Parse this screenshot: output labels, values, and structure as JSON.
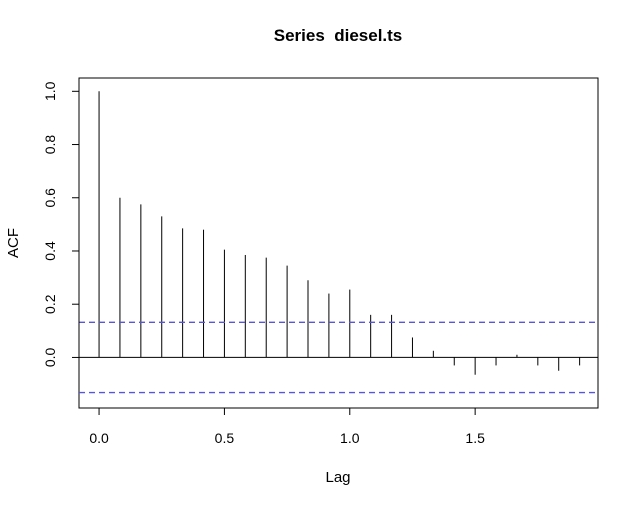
{
  "chart_data": {
    "type": "bar",
    "title": "Series  diesel.ts",
    "xlabel": "Lag",
    "ylabel": "ACF",
    "xlim": [
      -0.08,
      1.99
    ],
    "ylim": [
      -0.19,
      1.05
    ],
    "x_ticks": [
      "0.0",
      "0.5",
      "1.0",
      "1.5"
    ],
    "y_ticks": [
      "0.0",
      "0.2",
      "0.4",
      "0.6",
      "0.8",
      "1.0"
    ],
    "grid": false,
    "x": [
      0.0,
      0.0833,
      0.1667,
      0.25,
      0.3333,
      0.4167,
      0.5,
      0.5833,
      0.6667,
      0.75,
      0.8333,
      0.9167,
      1.0,
      1.0833,
      1.1667,
      1.25,
      1.3333,
      1.4167,
      1.5,
      1.5833,
      1.6667,
      1.75,
      1.8333,
      1.9167
    ],
    "values": [
      1.0,
      0.6,
      0.575,
      0.53,
      0.485,
      0.48,
      0.405,
      0.385,
      0.375,
      0.345,
      0.29,
      0.24,
      0.255,
      0.16,
      0.16,
      0.075,
      0.025,
      -0.03,
      -0.065,
      -0.03,
      0.01,
      -0.03,
      -0.05,
      -0.03
    ],
    "confidence_bounds": [
      0.132,
      -0.132
    ],
    "colors": {
      "bars": "#000000",
      "bounds": "#5555dd",
      "frame": "#000000"
    }
  }
}
